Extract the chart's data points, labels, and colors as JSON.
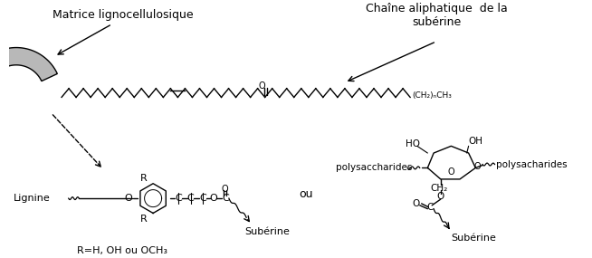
{
  "bg_color": "#ffffff",
  "fig_width": 6.54,
  "fig_height": 2.85,
  "label_matrice": "Matrice lignocellulosique",
  "label_chaine": "Chaîne aliphatique  de la\nsubérine",
  "label_lignine": "Lignine",
  "label_suberine1": "Subérine",
  "label_suberine2": "Subérine",
  "label_polysacc1": "polysacharides",
  "label_polysacc2": "polysaccharides",
  "label_ou": "ou",
  "label_R": "R=H, OH ou OCH₃",
  "label_ch2n_ch3": "(CH₂)ₙCH₃",
  "label_CH2": "CH₂",
  "label_HO": "HO",
  "label_OH": "OH"
}
